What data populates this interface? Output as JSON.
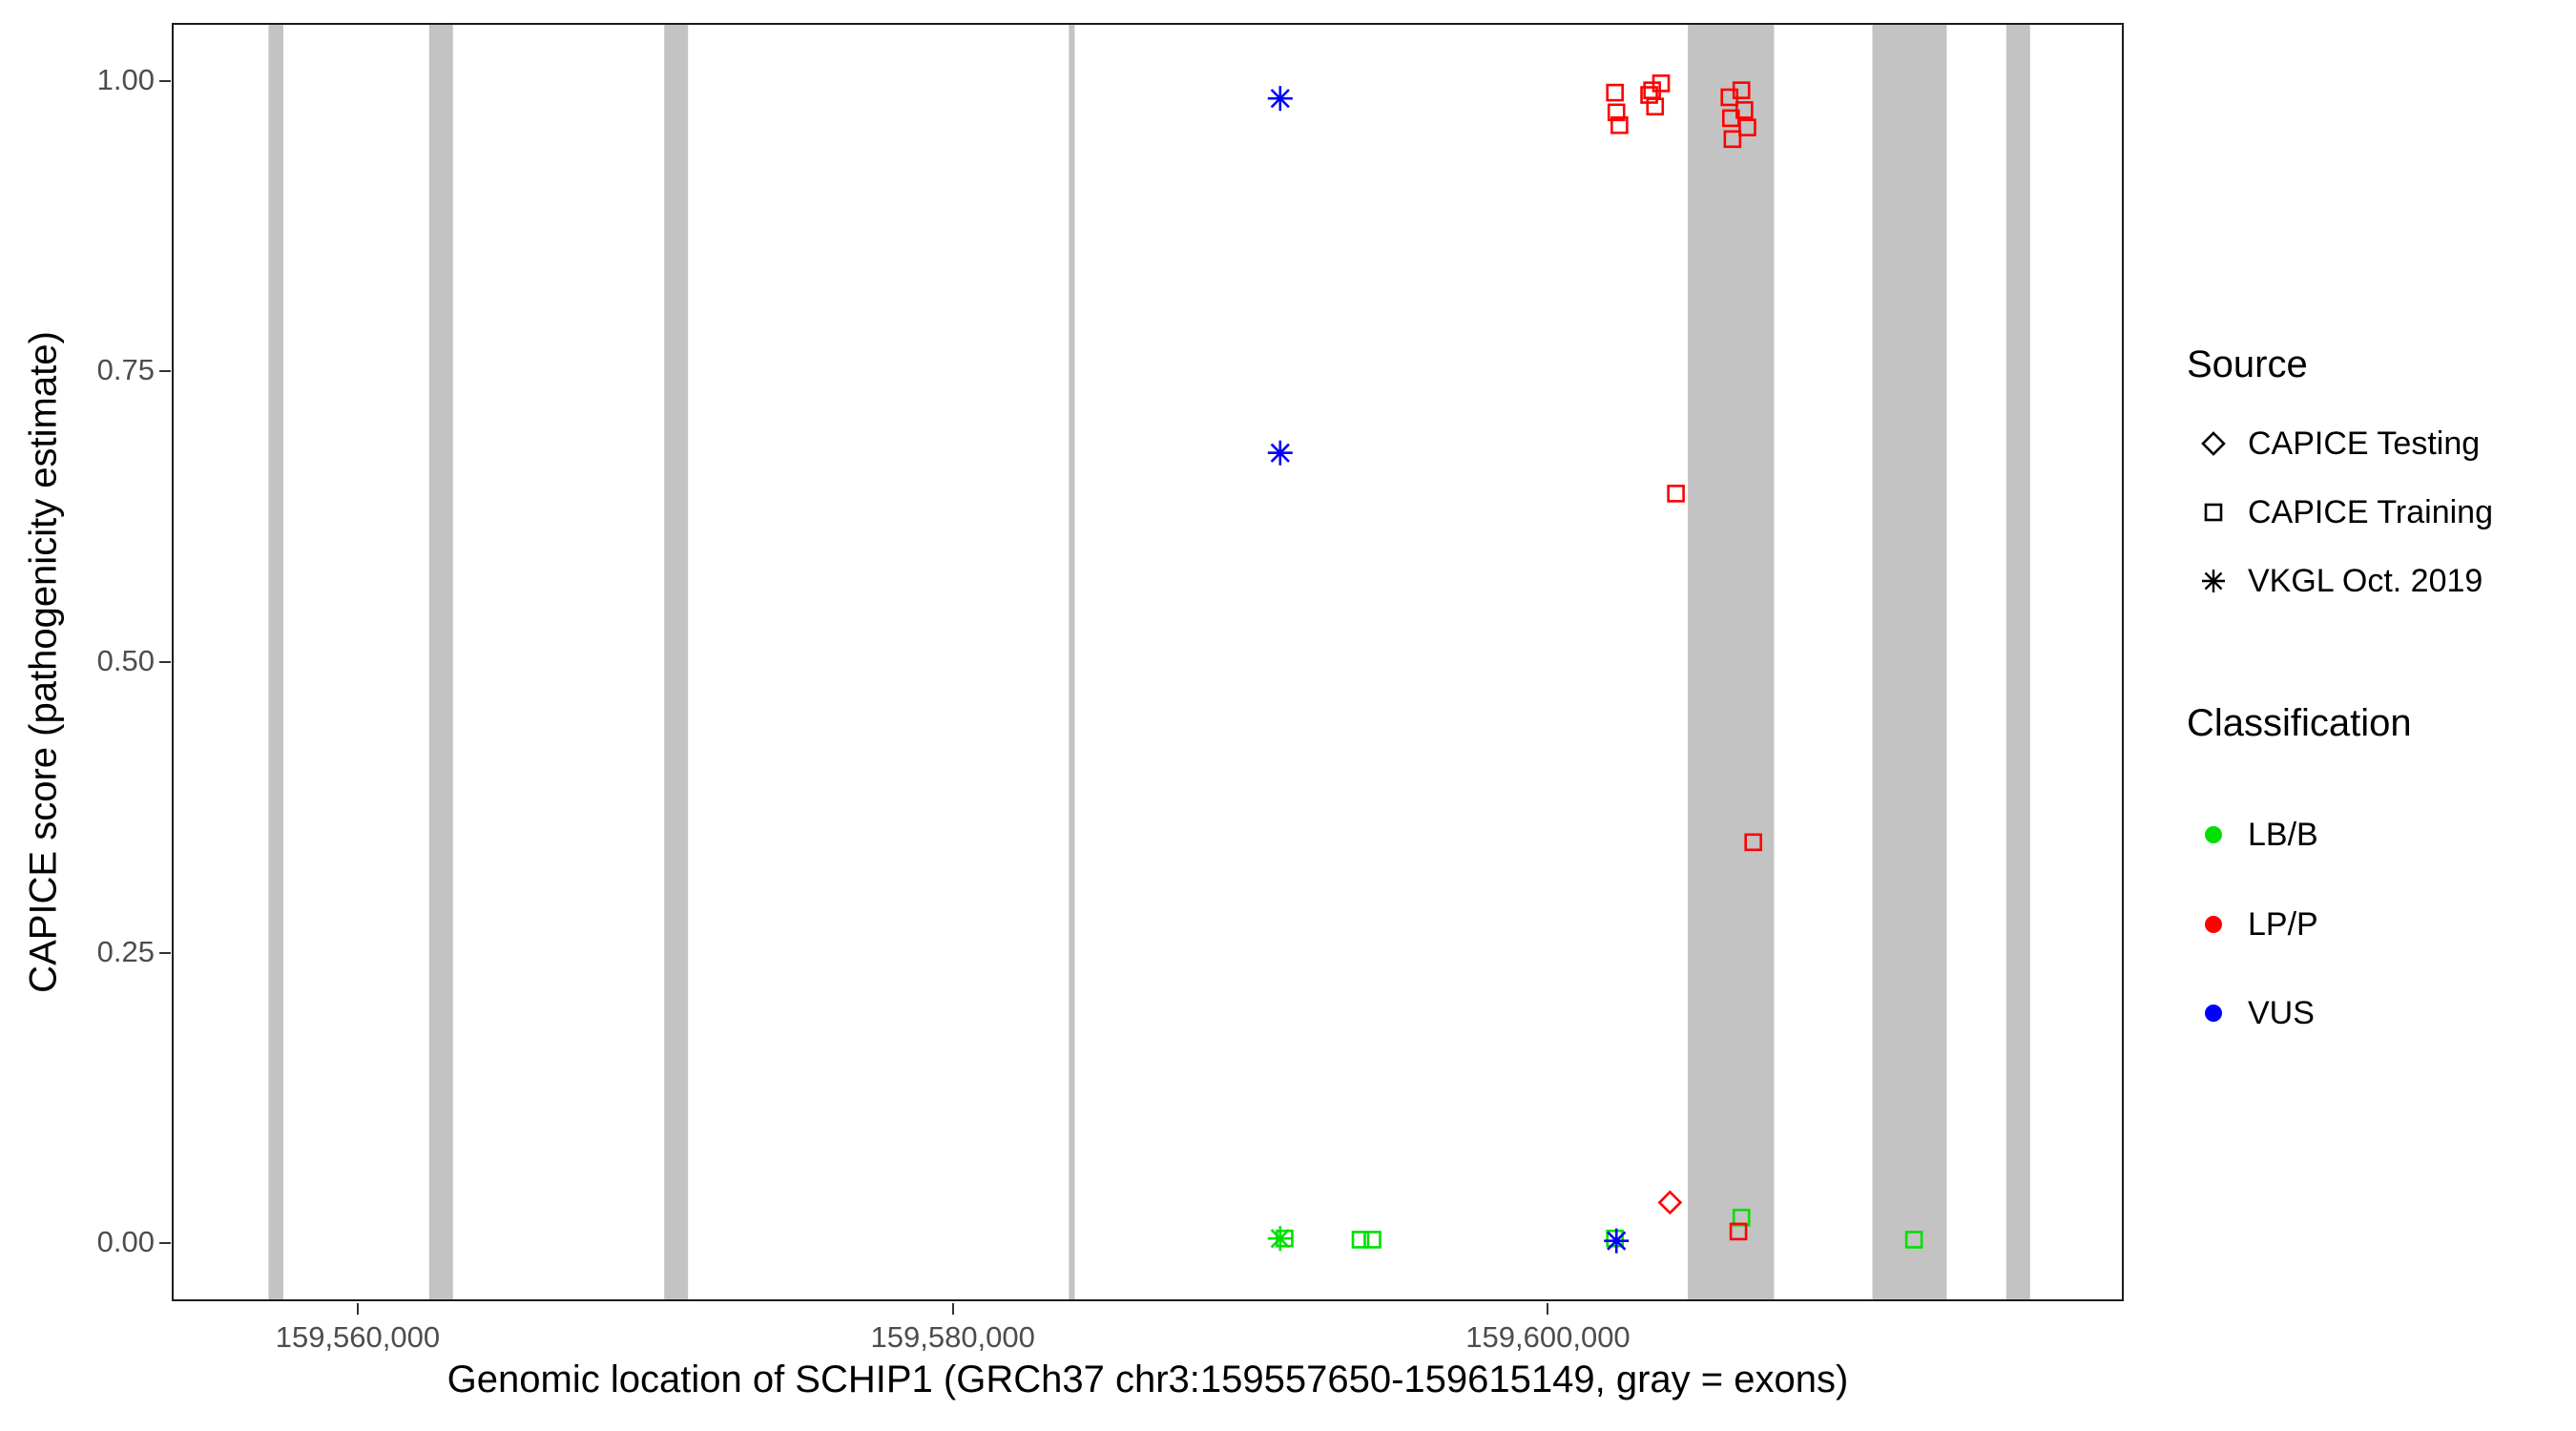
{
  "chart_data": {
    "type": "scatter",
    "title": "",
    "xlabel": "Genomic location of SCHIP1 (GRCh37 chr3:159557650-159615149, gray = exons)",
    "ylabel": "CAPICE score (pathogenicity estimate)",
    "x_domain": [
      159553750,
      159619350
    ],
    "y_domain": [
      -0.05,
      1.05
    ],
    "grid": "off",
    "legend_position": "right",
    "x_ticks": [
      {
        "value": 159560000,
        "label": "159,560,000"
      },
      {
        "value": 159580000,
        "label": "159,580,000"
      },
      {
        "value": 159600000,
        "label": "159,600,000"
      }
    ],
    "y_ticks": [
      {
        "value": 0.0,
        "label": "0.00"
      },
      {
        "value": 0.25,
        "label": "0.25"
      },
      {
        "value": 0.5,
        "label": "0.50"
      },
      {
        "value": 0.75,
        "label": "0.75"
      },
      {
        "value": 1.0,
        "label": "1.00"
      }
    ],
    "exon_color": "#c3c3c3",
    "colors": {
      "LB/B": "#00e000",
      "LP/P": "#ff0000",
      "VUS": "#0000ff"
    },
    "exons": [
      [
        159557000,
        159557500
      ],
      [
        159562400,
        159563200
      ],
      [
        159570300,
        159571100
      ],
      [
        159583900,
        159584100
      ],
      [
        159604700,
        159607600
      ],
      [
        159610900,
        159613400
      ],
      [
        159615400,
        159616200
      ]
    ],
    "points": [
      {
        "x": 159591150,
        "y": 0.004,
        "shape": "square",
        "class": "LB/B"
      },
      {
        "x": 159591000,
        "y": 0.004,
        "shape": "asterisk",
        "class": "LB/B"
      },
      {
        "x": 159593700,
        "y": 0.003,
        "shape": "square",
        "class": "LB/B"
      },
      {
        "x": 159594100,
        "y": 0.003,
        "shape": "square",
        "class": "LB/B"
      },
      {
        "x": 159602250,
        "y": 0.004,
        "shape": "square",
        "class": "LB/B"
      },
      {
        "x": 159606500,
        "y": 0.022,
        "shape": "square",
        "class": "LB/B"
      },
      {
        "x": 159612300,
        "y": 0.003,
        "shape": "square",
        "class": "LB/B"
      },
      {
        "x": 159591000,
        "y": 0.985,
        "shape": "asterisk",
        "class": "VUS"
      },
      {
        "x": 159591000,
        "y": 0.68,
        "shape": "asterisk",
        "class": "VUS"
      },
      {
        "x": 159602300,
        "y": 0.002,
        "shape": "asterisk",
        "class": "VUS"
      },
      {
        "x": 159602250,
        "y": 0.99,
        "shape": "square",
        "class": "LP/P"
      },
      {
        "x": 159602300,
        "y": 0.973,
        "shape": "square",
        "class": "LP/P"
      },
      {
        "x": 159602400,
        "y": 0.962,
        "shape": "square",
        "class": "LP/P"
      },
      {
        "x": 159603400,
        "y": 0.988,
        "shape": "square",
        "class": "LP/P"
      },
      {
        "x": 159603500,
        "y": 0.992,
        "shape": "square",
        "class": "LP/P"
      },
      {
        "x": 159603600,
        "y": 0.978,
        "shape": "square",
        "class": "LP/P"
      },
      {
        "x": 159603800,
        "y": 0.998,
        "shape": "square",
        "class": "LP/P"
      },
      {
        "x": 159606100,
        "y": 0.986,
        "shape": "square",
        "class": "LP/P"
      },
      {
        "x": 159606150,
        "y": 0.968,
        "shape": "square",
        "class": "LP/P"
      },
      {
        "x": 159606200,
        "y": 0.95,
        "shape": "square",
        "class": "LP/P"
      },
      {
        "x": 159606500,
        "y": 0.992,
        "shape": "square",
        "class": "LP/P"
      },
      {
        "x": 159606600,
        "y": 0.975,
        "shape": "square",
        "class": "LP/P"
      },
      {
        "x": 159606700,
        "y": 0.96,
        "shape": "square",
        "class": "LP/P"
      },
      {
        "x": 159604300,
        "y": 0.645,
        "shape": "square",
        "class": "LP/P"
      },
      {
        "x": 159606900,
        "y": 0.345,
        "shape": "square",
        "class": "LP/P"
      },
      {
        "x": 159606400,
        "y": 0.01,
        "shape": "square",
        "class": "LP/P"
      },
      {
        "x": 159604100,
        "y": 0.035,
        "shape": "diamond",
        "class": "LP/P"
      }
    ]
  },
  "legend": {
    "source": {
      "title": "Source",
      "items": [
        {
          "label": "CAPICE Testing",
          "shape": "diamond"
        },
        {
          "label": "CAPICE Training",
          "shape": "square"
        },
        {
          "label": "VKGL Oct. 2019",
          "shape": "asterisk"
        }
      ]
    },
    "classification": {
      "title": "Classification",
      "items": [
        {
          "label": "LB/B",
          "color": "#00e000"
        },
        {
          "label": "LP/P",
          "color": "#ff0000"
        },
        {
          "label": "VUS",
          "color": "#0000ff"
        }
      ]
    }
  }
}
